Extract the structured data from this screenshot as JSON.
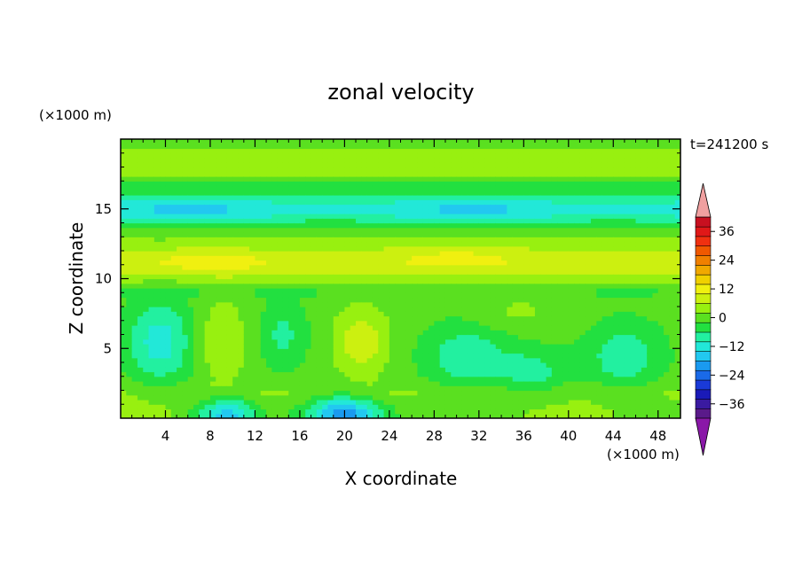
{
  "chart_data": {
    "type": "heatmap",
    "title": "zonal velocity",
    "xlabel": "X coordinate",
    "ylabel": "Z coordinate",
    "x_unit": "(×1000 m)",
    "y_unit": "(×1000 m)",
    "time_label": "t=241200 s",
    "xlim": [
      0,
      50
    ],
    "ylim": [
      0,
      20
    ],
    "x_ticks": [
      4,
      8,
      12,
      16,
      20,
      24,
      28,
      32,
      36,
      40,
      44,
      48
    ],
    "y_ticks": [
      5,
      10,
      15
    ],
    "colorbar": {
      "min": -42,
      "step": 4,
      "labels": [
        36,
        24,
        12,
        0,
        -12,
        -24,
        -36
      ],
      "colors": [
        "#5a1a8a",
        "#3a1aa0",
        "#1a1ab8",
        "#1a3ad8",
        "#1a6ae8",
        "#1a9af0",
        "#22c8f0",
        "#22e8d8",
        "#22f0a0",
        "#22e040",
        "#5ae020",
        "#98f010",
        "#ccf010",
        "#f0f010",
        "#f0d000",
        "#f0a800",
        "#f08000",
        "#f05800",
        "#f03010",
        "#e01818",
        "#c81020"
      ],
      "over_color": "#f0a0a0",
      "under_color": "#8a18a8"
    },
    "field_summary": "horizontal bands: weak positive flow 0–12 near z=10–13 km, negative flow down to about -16 near z=14–16 km, alternating cells below 9 km"
  }
}
